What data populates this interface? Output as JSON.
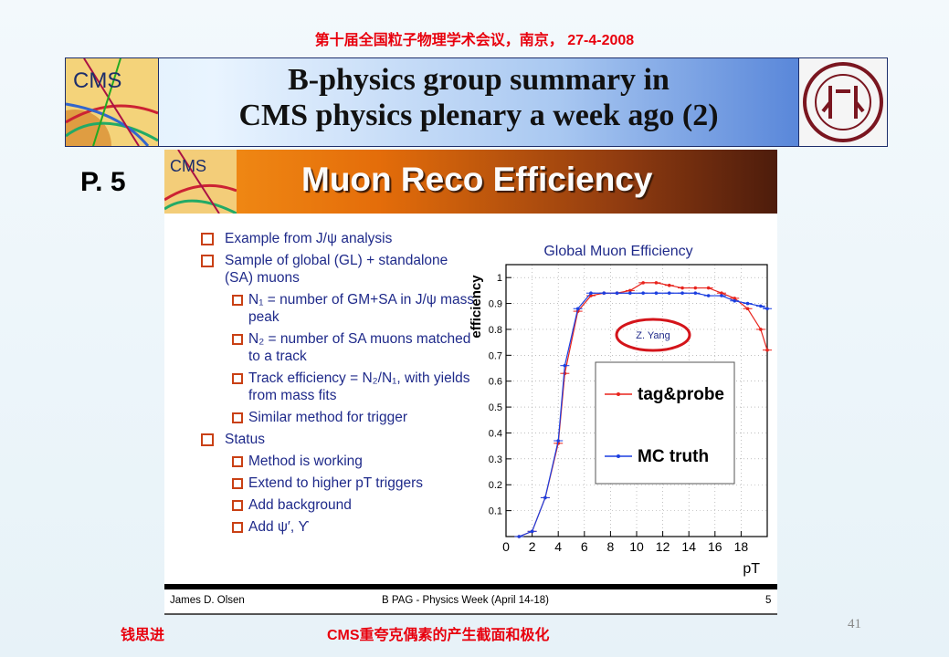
{
  "header": {
    "conference": "第十届全国粒子物理学术会议，南京， 27-4-2008"
  },
  "title": {
    "line1": "B-physics group summary in",
    "line2": "CMS physics plenary a week ago (2)",
    "cms_logo_text": "CMS"
  },
  "page_label": "P. 5",
  "slide": {
    "cms_logo_text": "CMS",
    "title": "Muon Reco Efficiency",
    "bullets": [
      "Example from J/ψ analysis",
      "Sample of global (GL) + standalone (SA) muons"
    ],
    "sub1": [
      "N₁ = number of GM+SA in J/ψ mass peak",
      "N₂ = number of SA muons matched to a track",
      "Track efficiency = N₂/N₁, with yields from mass fits",
      "Similar method for trigger"
    ],
    "status": "Status",
    "sub2": [
      "Method is working",
      "Extend to higher pT triggers",
      "Add background",
      "Add ψ′, ϒ"
    ],
    "footer": {
      "author": "James D. Olsen",
      "meeting": "B PAG - Physics Week (April 14-18)",
      "page": "5"
    }
  },
  "chart_data": {
    "type": "line",
    "title": "Global Muon Efficiency",
    "xlabel": "pT",
    "ylabel": "efficiency",
    "annotation": "Z. Yang",
    "xlim": [
      0,
      20
    ],
    "ylim": [
      0,
      1.05
    ],
    "xticks": [
      0,
      2,
      4,
      6,
      8,
      10,
      12,
      14,
      16,
      18
    ],
    "yticks": [
      0.1,
      0.2,
      0.3,
      0.4,
      0.5,
      0.6,
      0.7,
      0.8,
      0.9,
      1
    ],
    "legend_position": "lower-right",
    "series": [
      {
        "name": "tag&probe",
        "color": "#e8231c",
        "x": [
          1,
          2,
          3,
          4,
          4.5,
          5.5,
          6.5,
          7.5,
          8.5,
          9.5,
          10.5,
          11.5,
          12.5,
          13.5,
          14.5,
          15.5,
          16.5,
          17.5,
          18.5,
          19.5,
          20
        ],
        "y": [
          0,
          0.02,
          0.15,
          0.36,
          0.63,
          0.87,
          0.93,
          0.94,
          0.94,
          0.95,
          0.98,
          0.98,
          0.97,
          0.96,
          0.96,
          0.96,
          0.94,
          0.92,
          0.88,
          0.8,
          0.72
        ]
      },
      {
        "name": "MC truth",
        "color": "#1c3fe0",
        "x": [
          1,
          2,
          3,
          4,
          4.5,
          5.5,
          6.5,
          7.5,
          8.5,
          9.5,
          10.5,
          11.5,
          12.5,
          13.5,
          14.5,
          15.5,
          16.5,
          17.5,
          18.5,
          19.5,
          20
        ],
        "y": [
          0,
          0.02,
          0.15,
          0.37,
          0.66,
          0.88,
          0.94,
          0.94,
          0.94,
          0.94,
          0.94,
          0.94,
          0.94,
          0.94,
          0.94,
          0.93,
          0.93,
          0.91,
          0.9,
          0.89,
          0.88
        ]
      }
    ]
  },
  "bottom": {
    "author": "钱思进",
    "topic": "CMS重夸克偶素的产生截面和极化",
    "slide_number": "41"
  },
  "colors": {
    "accent_red": "#e8000d",
    "title_navy": "#1d2e6b",
    "slide_orange": "#e46d0a"
  }
}
